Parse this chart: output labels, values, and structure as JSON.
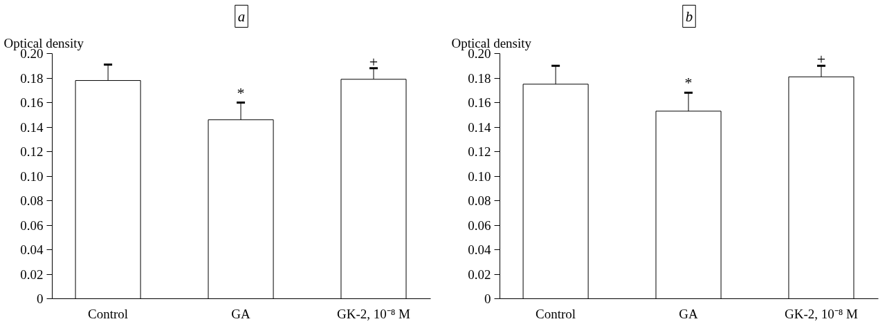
{
  "chart_data": [
    {
      "type": "bar",
      "title": "a",
      "ylabel": "Optical density",
      "categories": [
        "Control",
        "GA",
        "GK-2, 10⁻⁸ M"
      ],
      "values": [
        0.178,
        0.146,
        0.179
      ],
      "color": "#ffffff",
      "errors": [
        [
          0.178,
          0.191
        ],
        [
          0.146,
          0.16
        ],
        [
          0.179,
          0.188
        ]
      ],
      "ylim": [
        0,
        0.2
      ],
      "yticks": [
        {
          "value": 0,
          "label": "0"
        },
        {
          "value": 0.02,
          "label": "0.02"
        },
        {
          "value": 0.04,
          "label": "0.04"
        },
        {
          "value": 0.06,
          "label": "0.06"
        },
        {
          "value": 0.08,
          "label": "0.08"
        },
        {
          "value": 0.1,
          "label": "0.10"
        },
        {
          "value": 0.12,
          "label": "0.12"
        },
        {
          "value": 0.14,
          "label": "0.14"
        },
        {
          "value": 0.16,
          "label": "0.16"
        },
        {
          "value": 0.18,
          "label": "0.18"
        },
        {
          "value": 0.2,
          "label": "0.20"
        }
      ],
      "annotations": [
        {
          "text": "*",
          "x": "GA",
          "y": 0.16
        },
        {
          "text": "+",
          "x": "GK-2, 10⁻⁸ M",
          "y": 0.188
        }
      ],
      "grid": false
    },
    {
      "type": "bar",
      "title": "b",
      "ylabel": "Optical density",
      "categories": [
        "Control",
        "GA",
        "GK-2, 10⁻⁸ M"
      ],
      "values": [
        0.175,
        0.153,
        0.181
      ],
      "color": "#ffffff",
      "errors": [
        [
          0.175,
          0.19
        ],
        [
          0.153,
          0.168
        ],
        [
          0.181,
          0.19
        ]
      ],
      "ylim": [
        0,
        0.2
      ],
      "yticks": [
        {
          "value": 0,
          "label": "0"
        },
        {
          "value": 0.02,
          "label": "0.02"
        },
        {
          "value": 0.04,
          "label": "0.04"
        },
        {
          "value": 0.06,
          "label": "0.06"
        },
        {
          "value": 0.08,
          "label": "0.08"
        },
        {
          "value": 0.1,
          "label": "0.10"
        },
        {
          "value": 0.12,
          "label": "0.12"
        },
        {
          "value": 0.14,
          "label": "0.14"
        },
        {
          "value": 0.16,
          "label": "0.16"
        },
        {
          "value": 0.18,
          "label": "0.18"
        },
        {
          "value": 0.2,
          "label": "0.20"
        }
      ],
      "annotations": [
        {
          "text": "*",
          "x": "GA",
          "y": 0.168
        },
        {
          "text": "+",
          "x": "GK-2, 10⁻⁸ M",
          "y": 0.19
        }
      ],
      "grid": false
    }
  ]
}
